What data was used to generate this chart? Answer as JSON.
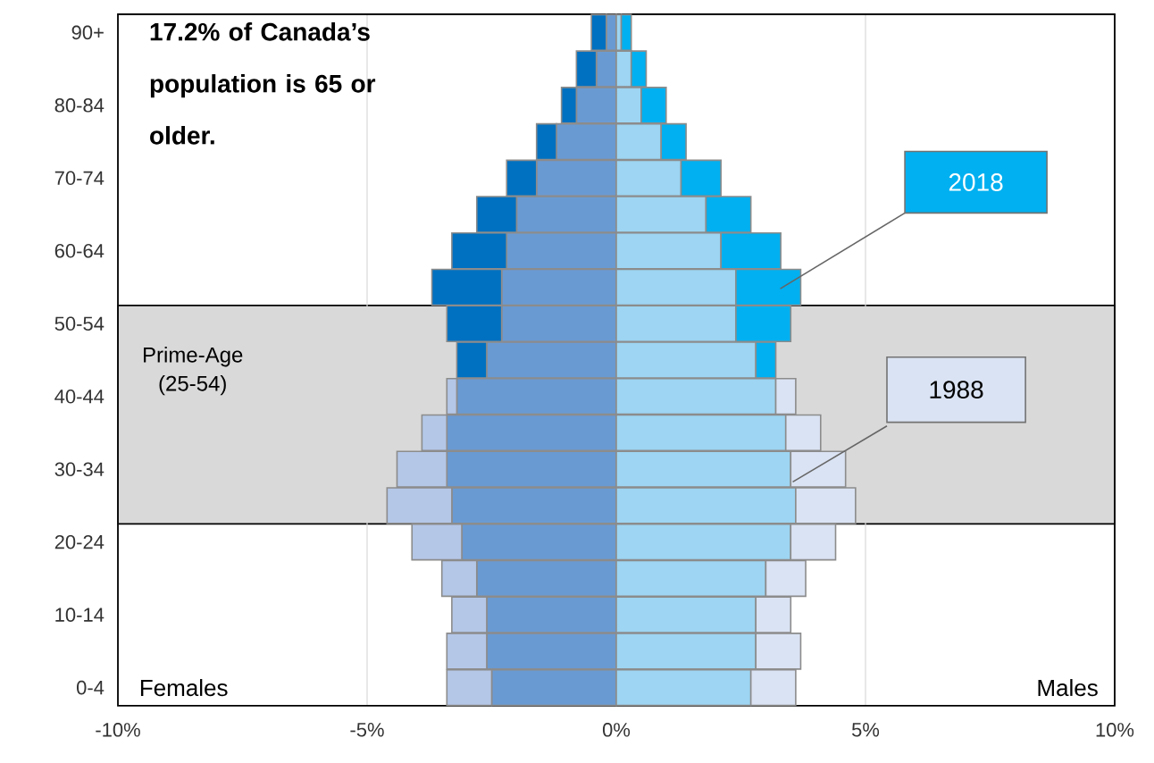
{
  "chart_data": {
    "type": "bar",
    "orientation": "horizontal",
    "stacked": true,
    "categories": [
      "90+",
      null,
      "80-84",
      null,
      "70-74",
      null,
      "60-64",
      null,
      "50-54",
      null,
      "40-44",
      null,
      "30-34",
      null,
      "20-24",
      null,
      "10-14",
      null,
      "0-4"
    ],
    "series": [
      {
        "color": "#6a9ad2",
        "values": [
          -0.2,
          -0.4,
          -0.8,
          -1.2,
          -1.6,
          -2.0,
          -2.2,
          -2.3,
          -2.3,
          -2.6,
          -3.2,
          -3.4,
          -3.4,
          -3.3,
          -3.1,
          -2.8,
          -2.6,
          -2.6,
          -2.5
        ]
      },
      {
        "color": "#0070c0",
        "values": [
          -0.3,
          -0.4,
          -0.3,
          -0.4,
          -0.6,
          -0.8,
          -1.1,
          -1.4,
          -1.1,
          -0.6,
          null,
          null,
          null,
          null,
          null,
          null,
          null,
          null,
          null
        ]
      },
      {
        "color": "#b4c7e7",
        "values": [
          null,
          null,
          null,
          null,
          null,
          null,
          null,
          null,
          null,
          null,
          -0.2,
          -0.5,
          -1.0,
          -1.3,
          -1.0,
          -0.7,
          -0.7,
          -0.8,
          -0.9
        ]
      },
      {
        "color": "#9dd5f2",
        "values": [
          0.1,
          0.3,
          0.5,
          0.9,
          1.3,
          1.8,
          2.1,
          2.4,
          2.4,
          2.8,
          3.2,
          3.4,
          3.5,
          3.6,
          3.5,
          3.0,
          2.8,
          2.8,
          2.7
        ]
      },
      {
        "name": "2018",
        "color": "#00b0f0",
        "values": [
          0.2,
          0.3,
          0.5,
          0.5,
          0.8,
          0.9,
          1.2,
          1.3,
          1.1,
          0.4,
          null,
          null,
          null,
          null,
          null,
          null,
          null,
          null,
          null
        ]
      },
      {
        "name": "1988",
        "color": "#dae3f3",
        "values": [
          null,
          null,
          null,
          null,
          null,
          null,
          null,
          null,
          null,
          null,
          0.4,
          0.7,
          1.1,
          1.2,
          0.9,
          0.8,
          0.7,
          0.9,
          0.9
        ]
      }
    ],
    "xlim": [
      -10,
      10
    ],
    "xticks": [
      {
        "value": -10,
        "label": "-10%"
      },
      {
        "value": -5,
        "label": "-5%"
      },
      {
        "value": 0,
        "label": "0%"
      },
      {
        "value": 5,
        "label": "5%"
      },
      {
        "value": 10,
        "label": "10%"
      }
    ],
    "grid": "x",
    "legend": false,
    "annotations": [
      "17.2% of Canada’s population is 65 or older.",
      "Prime-Age (25-54)",
      "Females",
      "Males"
    ]
  }
}
